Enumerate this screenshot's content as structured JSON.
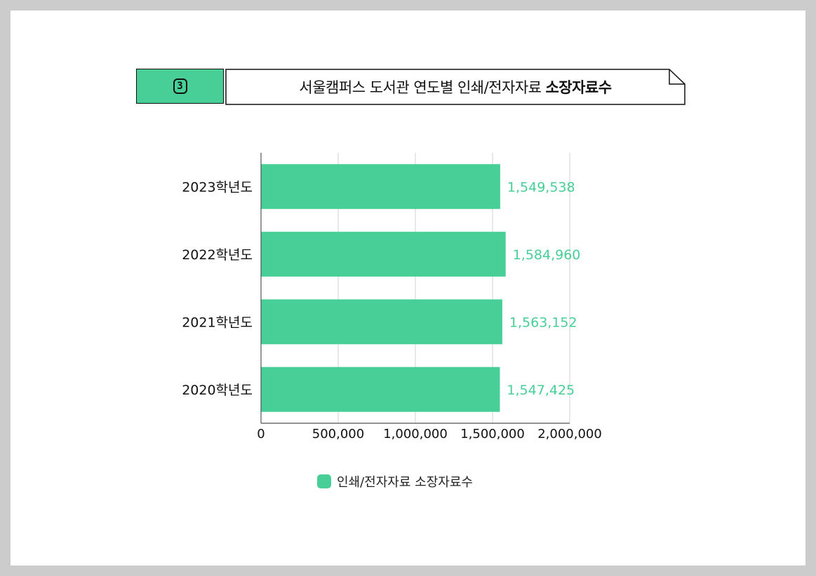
{
  "title": {
    "number": "3",
    "text_regular": "서울캠퍼스 도서관 연도별 인쇄/전자자료",
    "text_bold": "소장자료수"
  },
  "colors": {
    "bar": "#47cf97",
    "value_label": "#47cf97",
    "grid": "#d0d0d0",
    "axis": "#555555"
  },
  "chart_data": {
    "type": "bar",
    "orientation": "horizontal",
    "categories": [
      "2023학년도",
      "2022학년도",
      "2021학년도",
      "2020학년도"
    ],
    "series": [
      {
        "name": "인쇄/전자자료 소장자료수",
        "values": [
          1549538,
          1584960,
          1563152,
          1547425
        ]
      }
    ],
    "value_labels": [
      "1,549,538",
      "1,584,960",
      "1,563,152",
      "1,547,425"
    ],
    "xlim": [
      0,
      2000000
    ],
    "xticks": [
      0,
      500000,
      1000000,
      1500000,
      2000000
    ],
    "xtick_labels": [
      "0",
      "500,000",
      "1,000,000",
      "1,500,000",
      "2,000,000"
    ],
    "grid": true,
    "legend_position": "bottom"
  },
  "legend": {
    "label": "인쇄/전자자료 소장자료수"
  }
}
